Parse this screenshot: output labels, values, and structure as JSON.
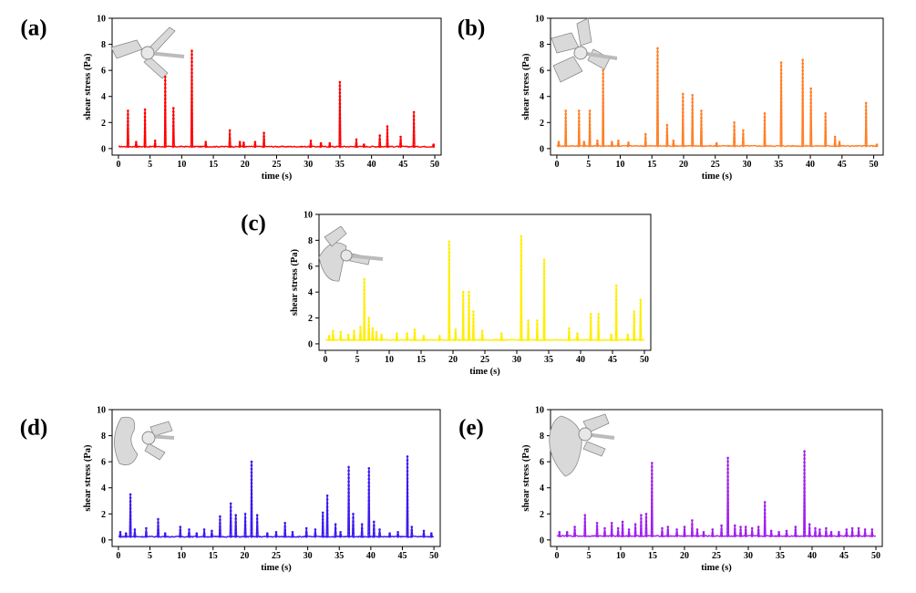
{
  "figure": {
    "panels": [
      {
        "id": "a",
        "label": "(a)",
        "color": "#ff0000",
        "impeller": "three-blade-propeller-icon"
      },
      {
        "id": "b",
        "label": "(b)",
        "color": "#ff7f27",
        "impeller": "four-pitched-blade-icon"
      },
      {
        "id": "c",
        "label": "(c)",
        "color": "#ffee00",
        "impeller": "hydrofoil-blade-icon"
      },
      {
        "id": "d",
        "label": "(d)",
        "color": "#3a1bf0",
        "impeller": "curved-blade-icon"
      },
      {
        "id": "e",
        "label": "(e)",
        "color": "#a020f0",
        "impeller": "wide-blade-hydrofoil-icon"
      }
    ]
  },
  "chart_data": [
    {
      "type": "line",
      "panel": "(a)",
      "xlabel": "time (s)",
      "ylabel": "shear stress (Pa)",
      "xlim": [
        -1,
        51
      ],
      "ylim": [
        -0.5,
        10
      ],
      "xticks": [
        0,
        5,
        10,
        15,
        20,
        25,
        30,
        35,
        40,
        45,
        50
      ],
      "yticks": [
        0,
        2,
        4,
        6,
        8,
        10
      ],
      "baseline": 0.15,
      "peaks": [
        [
          1.5,
          2.9
        ],
        [
          2.8,
          0.5
        ],
        [
          4.2,
          3.0
        ],
        [
          5.8,
          0.6
        ],
        [
          7.4,
          5.5
        ],
        [
          8.7,
          3.1
        ],
        [
          11.6,
          7.5
        ],
        [
          13.8,
          0.5
        ],
        [
          17.6,
          1.4
        ],
        [
          19.2,
          0.5
        ],
        [
          19.8,
          0.45
        ],
        [
          21.6,
          0.5
        ],
        [
          23.0,
          1.2
        ],
        [
          30.4,
          0.6
        ],
        [
          32.0,
          0.4
        ],
        [
          33.4,
          0.4
        ],
        [
          35.0,
          5.1
        ],
        [
          37.6,
          0.7
        ],
        [
          38.8,
          0.3
        ],
        [
          41.3,
          1.0
        ],
        [
          42.5,
          1.7
        ],
        [
          44.6,
          0.9
        ],
        [
          46.7,
          2.8
        ],
        [
          49.8,
          0.3
        ]
      ]
    },
    {
      "type": "line",
      "panel": "(b)",
      "xlabel": "time (s)",
      "ylabel": "shear stress (Pa)",
      "xlim": [
        -1,
        51.5
      ],
      "ylim": [
        -0.5,
        10
      ],
      "xticks": [
        0,
        5,
        10,
        15,
        20,
        25,
        30,
        35,
        40,
        45,
        50
      ],
      "yticks": [
        0,
        2,
        4,
        6,
        8,
        10
      ],
      "baseline": 0.2,
      "peaks": [
        [
          0.3,
          0.5
        ],
        [
          1.4,
          2.9
        ],
        [
          3.5,
          2.9
        ],
        [
          4.3,
          0.5
        ],
        [
          5.2,
          2.9
        ],
        [
          6.4,
          0.6
        ],
        [
          7.3,
          6.0
        ],
        [
          8.7,
          0.5
        ],
        [
          9.7,
          0.6
        ],
        [
          11.3,
          0.45
        ],
        [
          14.0,
          1.1
        ],
        [
          15.9,
          7.7
        ],
        [
          17.4,
          1.8
        ],
        [
          18.4,
          0.6
        ],
        [
          19.9,
          4.2
        ],
        [
          21.4,
          4.1
        ],
        [
          22.8,
          2.9
        ],
        [
          25.2,
          0.4
        ],
        [
          28.0,
          2.0
        ],
        [
          29.4,
          1.4
        ],
        [
          32.8,
          2.7
        ],
        [
          35.4,
          6.6
        ],
        [
          38.8,
          6.8
        ],
        [
          40.1,
          4.6
        ],
        [
          42.4,
          2.7
        ],
        [
          43.9,
          0.9
        ],
        [
          44.6,
          0.5
        ],
        [
          48.8,
          3.5
        ],
        [
          50.5,
          0.3
        ]
      ]
    },
    {
      "type": "line",
      "panel": "(c)",
      "xlabel": "time (s)",
      "ylabel": "shear stress (Pa)",
      "xlim": [
        -1,
        51
      ],
      "ylim": [
        -0.5,
        10
      ],
      "xticks": [
        0,
        5,
        10,
        15,
        20,
        25,
        30,
        35,
        40,
        45,
        50
      ],
      "yticks": [
        0,
        2,
        4,
        6,
        8,
        10
      ],
      "baseline": 0.3,
      "peaks": [
        [
          0.6,
          0.6
        ],
        [
          1.2,
          1.0
        ],
        [
          2.4,
          0.9
        ],
        [
          3.6,
          0.7
        ],
        [
          4.5,
          1.0
        ],
        [
          5.5,
          1.3
        ],
        [
          6.1,
          5.0
        ],
        [
          6.8,
          2.0
        ],
        [
          7.4,
          1.2
        ],
        [
          8.0,
          0.9
        ],
        [
          8.8,
          0.7
        ],
        [
          11.2,
          0.8
        ],
        [
          12.8,
          0.8
        ],
        [
          14.0,
          1.1
        ],
        [
          15.4,
          0.6
        ],
        [
          17.9,
          0.6
        ],
        [
          19.4,
          7.9
        ],
        [
          20.4,
          1.1
        ],
        [
          21.6,
          4.0
        ],
        [
          22.5,
          4.0
        ],
        [
          23.2,
          2.5
        ],
        [
          24.6,
          1.0
        ],
        [
          27.6,
          0.8
        ],
        [
          30.7,
          8.3
        ],
        [
          31.8,
          1.8
        ],
        [
          33.2,
          1.8
        ],
        [
          34.3,
          6.5
        ],
        [
          38.2,
          1.2
        ],
        [
          39.5,
          0.8
        ],
        [
          41.6,
          2.3
        ],
        [
          42.8,
          2.3
        ],
        [
          44.8,
          0.7
        ],
        [
          45.6,
          4.5
        ],
        [
          47.4,
          0.7
        ],
        [
          48.4,
          2.5
        ],
        [
          49.4,
          3.4
        ]
      ]
    },
    {
      "type": "line",
      "panel": "(d)",
      "xlabel": "time (s)",
      "ylabel": "shear stress (Pa)",
      "xlim": [
        -1,
        51
      ],
      "ylim": [
        -0.5,
        10
      ],
      "xticks": [
        0,
        5,
        10,
        15,
        20,
        25,
        30,
        35,
        40,
        45,
        50
      ],
      "yticks": [
        0,
        2,
        4,
        6,
        8,
        10
      ],
      "baseline": 0.25,
      "peaks": [
        [
          0.3,
          0.6
        ],
        [
          1.2,
          0.5
        ],
        [
          1.9,
          3.5
        ],
        [
          2.6,
          0.8
        ],
        [
          4.4,
          0.9
        ],
        [
          6.3,
          1.6
        ],
        [
          7.4,
          0.5
        ],
        [
          9.8,
          1.0
        ],
        [
          11.2,
          0.8
        ],
        [
          12.4,
          0.5
        ],
        [
          13.6,
          0.8
        ],
        [
          14.8,
          0.7
        ],
        [
          16.1,
          1.8
        ],
        [
          17.8,
          2.8
        ],
        [
          18.6,
          1.9
        ],
        [
          20.1,
          2.0
        ],
        [
          21.1,
          6.0
        ],
        [
          22.0,
          1.9
        ],
        [
          23.6,
          0.5
        ],
        [
          25.0,
          0.6
        ],
        [
          26.4,
          1.3
        ],
        [
          27.6,
          0.6
        ],
        [
          29.8,
          0.9
        ],
        [
          31.2,
          0.8
        ],
        [
          32.4,
          2.1
        ],
        [
          33.1,
          3.4
        ],
        [
          34.4,
          1.2
        ],
        [
          35.2,
          0.6
        ],
        [
          36.5,
          5.6
        ],
        [
          37.2,
          2.0
        ],
        [
          38.6,
          1.2
        ],
        [
          39.7,
          5.5
        ],
        [
          40.5,
          1.4
        ],
        [
          41.4,
          0.8
        ],
        [
          43.0,
          0.5
        ],
        [
          44.3,
          0.6
        ],
        [
          45.8,
          6.4
        ],
        [
          46.5,
          1.0
        ],
        [
          48.4,
          0.7
        ],
        [
          49.6,
          0.5
        ]
      ]
    },
    {
      "type": "line",
      "panel": "(e)",
      "xlabel": "time (s)",
      "ylabel": "shear stress (Pa)",
      "xlim": [
        -1,
        51
      ],
      "ylim": [
        -0.5,
        10
      ],
      "xticks": [
        0,
        5,
        10,
        15,
        20,
        25,
        30,
        35,
        40,
        45,
        50
      ],
      "yticks": [
        0,
        2,
        4,
        6,
        8,
        10
      ],
      "baseline": 0.3,
      "peaks": [
        [
          0.4,
          0.6
        ],
        [
          1.6,
          0.6
        ],
        [
          2.8,
          1.0
        ],
        [
          4.4,
          1.9
        ],
        [
          6.3,
          1.3
        ],
        [
          7.5,
          0.9
        ],
        [
          8.6,
          1.3
        ],
        [
          9.6,
          0.9
        ],
        [
          10.3,
          1.4
        ],
        [
          11.3,
          0.8
        ],
        [
          12.3,
          1.2
        ],
        [
          13.2,
          1.9
        ],
        [
          14.0,
          2.0
        ],
        [
          14.9,
          5.9
        ],
        [
          16.5,
          0.9
        ],
        [
          17.4,
          1.0
        ],
        [
          18.8,
          0.8
        ],
        [
          20.0,
          1.0
        ],
        [
          21.2,
          1.5
        ],
        [
          22.0,
          0.8
        ],
        [
          23.0,
          0.6
        ],
        [
          24.4,
          0.8
        ],
        [
          25.8,
          1.1
        ],
        [
          26.8,
          6.3
        ],
        [
          27.9,
          1.1
        ],
        [
          28.8,
          1.0
        ],
        [
          29.6,
          1.0
        ],
        [
          30.6,
          0.9
        ],
        [
          31.6,
          1.0
        ],
        [
          32.6,
          2.9
        ],
        [
          33.6,
          0.7
        ],
        [
          34.8,
          0.6
        ],
        [
          36.0,
          0.7
        ],
        [
          37.4,
          1.0
        ],
        [
          38.8,
          6.8
        ],
        [
          39.6,
          1.2
        ],
        [
          40.5,
          0.9
        ],
        [
          41.2,
          0.8
        ],
        [
          42.2,
          0.9
        ],
        [
          43.0,
          0.6
        ],
        [
          44.2,
          0.6
        ],
        [
          45.4,
          0.8
        ],
        [
          46.3,
          0.9
        ],
        [
          47.3,
          0.9
        ],
        [
          48.3,
          0.8
        ],
        [
          49.4,
          0.8
        ]
      ]
    }
  ]
}
